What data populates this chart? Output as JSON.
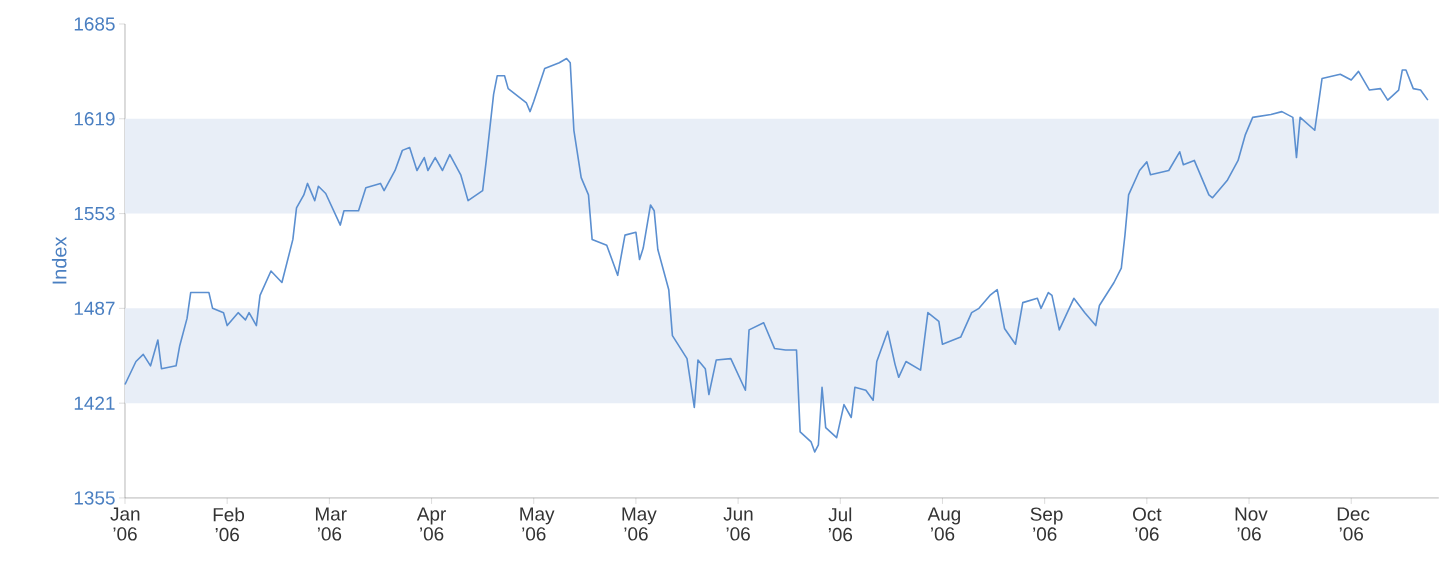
{
  "chart_data": {
    "type": "line",
    "ylabel": "Index",
    "color": "#5b8fd0",
    "x": [
      "2006-01-11",
      "2006-01-14",
      "2006-01-16",
      "2006-01-18",
      "2006-01-20",
      "2006-01-21",
      "2006-01-25",
      "2006-01-26",
      "2006-01-28",
      "2006-01-29",
      "2006-02-03",
      "2006-02-04",
      "2006-02-07",
      "2006-02-08",
      "2006-02-11",
      "2006-02-13",
      "2006-02-14",
      "2006-02-16",
      "2006-02-17",
      "2006-02-20",
      "2006-02-23",
      "2006-02-26",
      "2006-02-27",
      "2006-03-01",
      "2006-03-02",
      "2006-03-04",
      "2006-03-05",
      "2006-03-07",
      "2006-03-11",
      "2006-03-12",
      "2006-03-16",
      "2006-03-18",
      "2006-03-22",
      "2006-03-23",
      "2006-03-26",
      "2006-03-28",
      "2006-03-30",
      "2006-04-01",
      "2006-04-03",
      "2006-04-04",
      "2006-04-06",
      "2006-04-08",
      "2006-04-10",
      "2006-04-13",
      "2006-04-15",
      "2006-04-19",
      "2006-04-20",
      "2006-04-22",
      "2006-04-23",
      "2006-04-25",
      "2006-04-26",
      "2006-05-01",
      "2006-05-02",
      "2006-05-03",
      "2006-05-06",
      "2006-05-10",
      "2006-05-12",
      "2006-05-13",
      "2006-05-14",
      "2006-05-16",
      "2006-05-18",
      "2006-05-19",
      "2006-05-23",
      "2006-05-26",
      "2006-05-28",
      "2006-05-31",
      "2006-06-01",
      "2006-06-02",
      "2006-06-04",
      "2006-06-05",
      "2006-06-06",
      "2006-06-09",
      "2006-06-10",
      "2006-06-14",
      "2006-06-16",
      "2006-06-17",
      "2006-06-19",
      "2006-06-20",
      "2006-06-22",
      "2006-06-26",
      "2006-06-30",
      "2006-07-01",
      "2006-07-05",
      "2006-07-08",
      "2006-07-11",
      "2006-07-14",
      "2006-07-15",
      "2006-07-18",
      "2006-07-19",
      "2006-07-20",
      "2006-07-21",
      "2006-07-22",
      "2006-07-25",
      "2006-07-27",
      "2006-07-29",
      "2006-07-30",
      "2006-08-02",
      "2006-08-04",
      "2006-08-05",
      "2006-08-08",
      "2006-08-10",
      "2006-08-11",
      "2006-08-13",
      "2006-08-17",
      "2006-08-19",
      "2006-08-22",
      "2006-08-23",
      "2006-08-28",
      "2006-08-31",
      "2006-09-02",
      "2006-09-05",
      "2006-09-07",
      "2006-09-09",
      "2006-09-12",
      "2006-09-14",
      "2006-09-18",
      "2006-09-19",
      "2006-09-21",
      "2006-09-22",
      "2006-09-24",
      "2006-09-28",
      "2006-10-01",
      "2006-10-04",
      "2006-10-05",
      "2006-10-09",
      "2006-10-11",
      "2006-10-12",
      "2006-10-13",
      "2006-10-16",
      "2006-10-18",
      "2006-10-19",
      "2006-10-24",
      "2006-10-27",
      "2006-10-28",
      "2006-10-31",
      "2006-11-04",
      "2006-11-05",
      "2006-11-09",
      "2006-11-12",
      "2006-11-14",
      "2006-11-16",
      "2006-11-21",
      "2006-11-24",
      "2006-11-27",
      "2006-11-28",
      "2006-11-29",
      "2006-12-03",
      "2006-12-05",
      "2006-12-10",
      "2006-12-13",
      "2006-12-15",
      "2006-12-18",
      "2006-12-21",
      "2006-12-23",
      "2006-12-26",
      "2006-12-27",
      "2006-12-28",
      "2006-12-30",
      "2007-01-01",
      "2007-01-03"
    ],
    "values": [
      1434,
      1450,
      1455,
      1447,
      1465,
      1445,
      1447,
      1461,
      1480,
      1498,
      1498,
      1487,
      1484,
      1475,
      1484,
      1479,
      1484,
      1475,
      1496,
      1513,
      1505,
      1535,
      1557,
      1566,
      1574,
      1562,
      1572,
      1567,
      1545,
      1555,
      1555,
      1571,
      1574,
      1569,
      1583,
      1597,
      1599,
      1583,
      1592,
      1583,
      1592,
      1583,
      1594,
      1580,
      1562,
      1569,
      1590,
      1636,
      1649,
      1649,
      1640,
      1630,
      1624,
      1631,
      1654,
      1658,
      1661,
      1658,
      1611,
      1578,
      1566,
      1535,
      1531,
      1510,
      1538,
      1540,
      1521,
      1529,
      1559,
      1555,
      1528,
      1500,
      1468,
      1452,
      1418,
      1451,
      1445,
      1427,
      1451,
      1452,
      1430,
      1472,
      1477,
      1459,
      1458,
      1458,
      1401,
      1394,
      1387,
      1392,
      1432,
      1404,
      1397,
      1420,
      1411,
      1432,
      1430,
      1423,
      1450,
      1471,
      1448,
      1439,
      1450,
      1444,
      1484,
      1478,
      1462,
      1467,
      1484,
      1487,
      1496,
      1500,
      1473,
      1462,
      1491,
      1494,
      1487,
      1498,
      1496,
      1472,
      1494,
      1484,
      1475,
      1489,
      1505,
      1515,
      1538,
      1566,
      1583,
      1589,
      1580,
      1583,
      1596,
      1587,
      1590,
      1566,
      1564,
      1576,
      1590,
      1608,
      1620,
      1622,
      1624,
      1620,
      1592,
      1620,
      1611,
      1647,
      1650,
      1646,
      1652,
      1639,
      1640,
      1632,
      1639,
      1653,
      1653,
      1640,
      1639,
      1632
    ],
    "xlim": [
      "2006-01-11",
      "2007-01-06"
    ],
    "ylim": [
      1355,
      1685
    ],
    "xticks": [
      {
        "value": "2006-01-11",
        "label": "Jan ’06"
      },
      {
        "value": "2006-02-08",
        "label": "Feb ’06"
      },
      {
        "value": "2006-03-08",
        "label": "Mar ’06"
      },
      {
        "value": "2006-04-05",
        "label": "Apr ’06"
      },
      {
        "value": "2006-05-03",
        "label": "May ’06"
      },
      {
        "value": "2006-05-31",
        "label": "May ’06"
      },
      {
        "value": "2006-06-28",
        "label": "Jun ’06"
      },
      {
        "value": "2006-07-26",
        "label": "Jul ’06"
      },
      {
        "value": "2006-08-23",
        "label": "Aug ’06"
      },
      {
        "value": "2006-09-20",
        "label": "Sep ’06"
      },
      {
        "value": "2006-10-18",
        "label": "Oct ’06"
      },
      {
        "value": "2006-11-15",
        "label": "Nov ’06"
      },
      {
        "value": "2006-12-13",
        "label": "Dec ’06"
      }
    ],
    "yticks": [
      1355,
      1421,
      1487,
      1553,
      1619,
      1685
    ],
    "bands": [
      {
        "axis": "y",
        "from": 1421,
        "to": 1487,
        "color": "#e8eef7"
      },
      {
        "axis": "y",
        "from": 1553,
        "to": 1619,
        "color": "#e8eef7"
      }
    ]
  }
}
